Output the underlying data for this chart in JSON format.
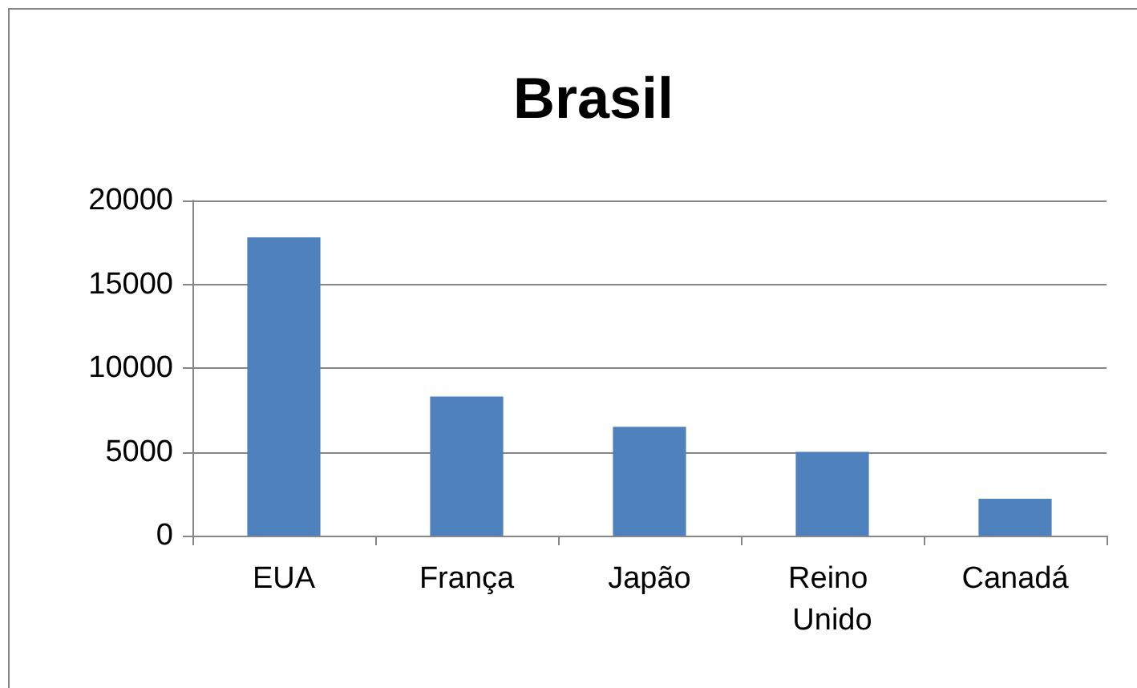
{
  "chart_data": {
    "type": "bar",
    "title": "Brasil",
    "categories": [
      "EUA",
      "França",
      "Japão",
      "Reino Unido",
      "Canadá"
    ],
    "values": [
      17800,
      8300,
      6500,
      5000,
      2200
    ],
    "color": "#4f81bd",
    "ylim": [
      0,
      20000
    ],
    "yticks": [
      0,
      5000,
      10000,
      15000,
      20000
    ],
    "grid": "y"
  }
}
